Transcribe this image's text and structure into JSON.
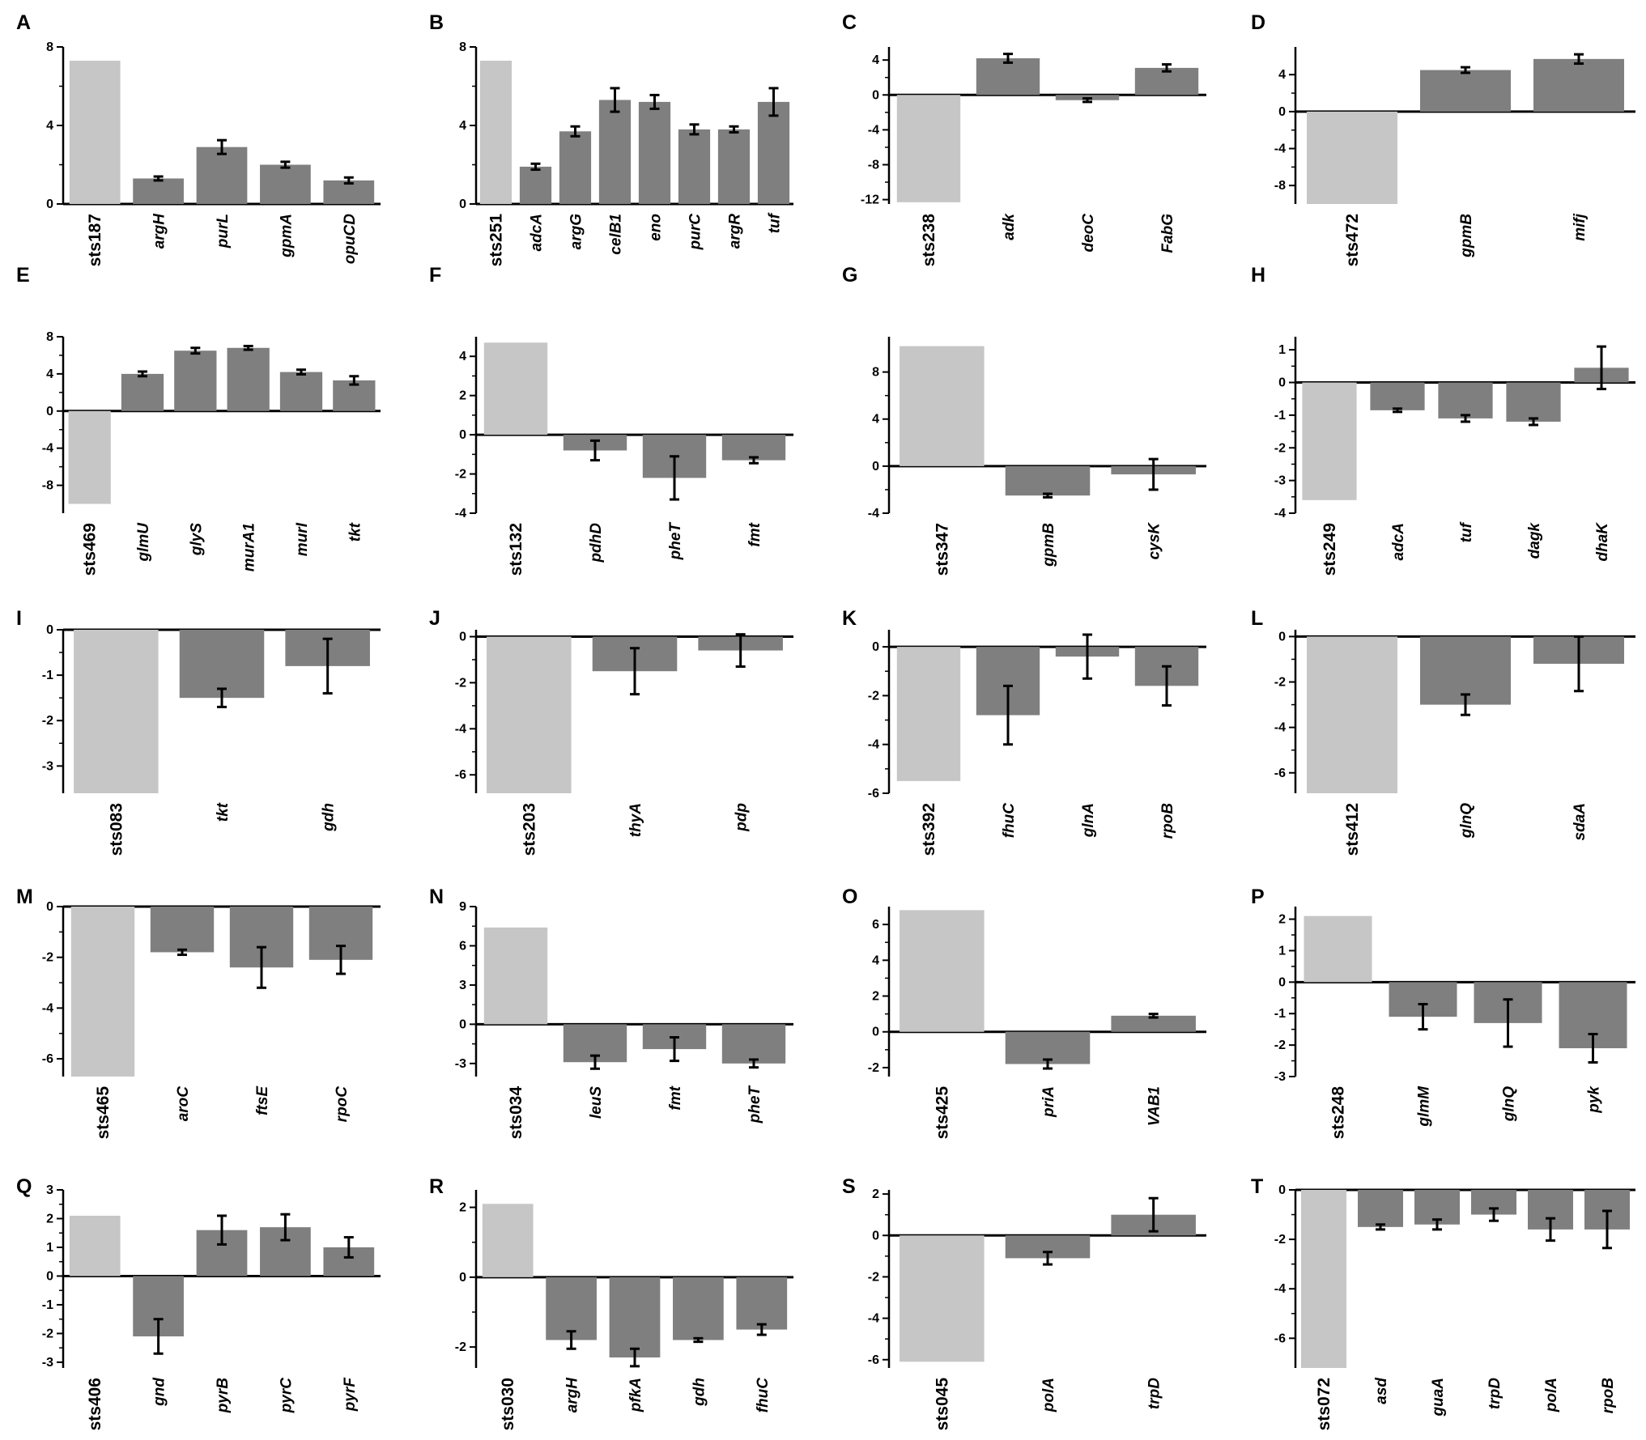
{
  "colors": {
    "first_bar": "#c6c6c6",
    "gene_bar": "#7f7f7f",
    "axis": "#000000",
    "error_bar": "#000000"
  },
  "chart_data": [
    {
      "panel": "A",
      "type": "bar",
      "ylim": [
        0,
        8
      ],
      "yticks": [
        0,
        4,
        8
      ],
      "categories": [
        "sts187",
        "argH",
        "purL",
        "gpmA",
        "opuCD"
      ],
      "values": [
        7.3,
        1.3,
        2.9,
        2.0,
        1.2
      ],
      "errors": [
        0,
        0.1,
        0.35,
        0.15,
        0.15
      ]
    },
    {
      "panel": "B",
      "type": "bar",
      "ylim": [
        0,
        8
      ],
      "yticks": [
        0,
        4,
        8
      ],
      "categories": [
        "sts251",
        "adcA",
        "argG",
        "celB1",
        "eno",
        "purC",
        "argR",
        "tuf"
      ],
      "values": [
        7.3,
        1.9,
        3.7,
        5.3,
        5.2,
        3.8,
        3.8,
        5.2
      ],
      "errors": [
        0,
        0.15,
        0.25,
        0.6,
        0.35,
        0.25,
        0.15,
        0.7
      ]
    },
    {
      "panel": "C",
      "type": "bar",
      "ylim": [
        -12.5,
        5.5
      ],
      "yticks": [
        -12,
        -8,
        -4,
        0,
        4
      ],
      "categories": [
        "sts238",
        "adk",
        "deoC",
        "FabG"
      ],
      "values": [
        -12.3,
        4.2,
        -0.6,
        3.1
      ],
      "errors": [
        0,
        0.5,
        0.2,
        0.4
      ]
    },
    {
      "panel": "D",
      "type": "bar",
      "ylim": [
        -10,
        7
      ],
      "yticks": [
        -8,
        -4,
        0,
        4
      ],
      "categories": [
        "sts472",
        "gpmB",
        "mifj"
      ],
      "values": [
        -10.0,
        4.5,
        5.7
      ],
      "errors": [
        0,
        0.3,
        0.5
      ]
    },
    {
      "panel": "E",
      "type": "bar",
      "ylim": [
        -11,
        8
      ],
      "yticks": [
        -8,
        -4,
        0,
        4,
        8
      ],
      "categories": [
        "sts469",
        "glmU",
        "glyS",
        "murA1",
        "murI",
        "tkt"
      ],
      "values": [
        -10.0,
        4.0,
        6.5,
        6.8,
        4.2,
        3.3
      ],
      "errors": [
        0,
        0.25,
        0.3,
        0.2,
        0.25,
        0.45
      ]
    },
    {
      "panel": "F",
      "type": "bar",
      "ylim": [
        -4,
        5
      ],
      "yticks": [
        -4,
        -2,
        0,
        2,
        4
      ],
      "categories": [
        "sts132",
        "pdhD",
        "pheT",
        "fmt"
      ],
      "values": [
        4.7,
        -0.8,
        -2.2,
        -1.3
      ],
      "errors": [
        0,
        0.5,
        1.1,
        0.15
      ]
    },
    {
      "panel": "G",
      "type": "bar",
      "ylim": [
        -4,
        11
      ],
      "yticks": [
        -4,
        0,
        4,
        8
      ],
      "categories": [
        "sts347",
        "gpmB",
        "cysK"
      ],
      "values": [
        10.2,
        -2.5,
        -0.7
      ],
      "errors": [
        0,
        0.15,
        1.3
      ]
    },
    {
      "panel": "H",
      "type": "bar",
      "ylim": [
        -4,
        1.4
      ],
      "yticks": [
        -4,
        -3,
        -2,
        -1,
        0,
        1
      ],
      "categories": [
        "sts249",
        "adcA",
        "tuf",
        "dagk",
        "dhaK"
      ],
      "values": [
        -3.6,
        -0.85,
        -1.1,
        -1.2,
        0.45
      ],
      "errors": [
        0,
        0.05,
        0.1,
        0.1,
        0.65
      ]
    },
    {
      "panel": "I",
      "type": "bar",
      "ylim": [
        -3.6,
        0
      ],
      "yticks": [
        -3,
        -2,
        -1,
        0
      ],
      "categories": [
        "sts083",
        "tkt",
        "gdh"
      ],
      "values": [
        -3.6,
        -1.5,
        -0.8
      ],
      "errors": [
        0,
        0.2,
        0.6
      ]
    },
    {
      "panel": "J",
      "type": "bar",
      "ylim": [
        -6.8,
        0.3
      ],
      "yticks": [
        -6,
        -4,
        -2,
        0
      ],
      "categories": [
        "sts203",
        "thyA",
        "pdp"
      ],
      "values": [
        -6.8,
        -1.5,
        -0.6
      ],
      "errors": [
        0,
        1.0,
        0.7
      ]
    },
    {
      "panel": "K",
      "type": "bar",
      "ylim": [
        -6,
        0.7
      ],
      "yticks": [
        -6,
        -4,
        -2,
        0
      ],
      "categories": [
        "sts392",
        "fhuC",
        "glnA",
        "rpoB"
      ],
      "values": [
        -5.5,
        -2.8,
        -0.4,
        -1.6
      ],
      "errors": [
        0,
        1.2,
        0.9,
        0.8
      ]
    },
    {
      "panel": "L",
      "type": "bar",
      "ylim": [
        -6.9,
        0.3
      ],
      "yticks": [
        -6,
        -4,
        -2,
        0
      ],
      "categories": [
        "sts412",
        "glnQ",
        "sdaA"
      ],
      "values": [
        -6.9,
        -3.0,
        -1.2
      ],
      "errors": [
        0,
        0.45,
        1.2
      ]
    },
    {
      "panel": "M",
      "type": "bar",
      "ylim": [
        -6.7,
        0
      ],
      "yticks": [
        -6,
        -4,
        -2,
        0
      ],
      "categories": [
        "sts465",
        "aroC",
        "ftsE",
        "rpoC"
      ],
      "values": [
        -6.7,
        -1.8,
        -2.4,
        -2.1
      ],
      "errors": [
        0,
        0.1,
        0.8,
        0.55
      ]
    },
    {
      "panel": "N",
      "type": "bar",
      "ylim": [
        -4,
        9
      ],
      "yticks": [
        -3,
        0,
        3,
        6,
        9
      ],
      "categories": [
        "sts034",
        "leuS",
        "fmt",
        "pheT"
      ],
      "values": [
        7.4,
        -2.9,
        -1.9,
        -3.0
      ],
      "errors": [
        0,
        0.5,
        0.9,
        0.3
      ]
    },
    {
      "panel": "O",
      "type": "bar",
      "ylim": [
        -2.5,
        7
      ],
      "yticks": [
        -2,
        0,
        2,
        4,
        6
      ],
      "categories": [
        "sts425",
        "priA",
        "VAB1"
      ],
      "values": [
        6.8,
        -1.8,
        0.9
      ],
      "errors": [
        0,
        0.25,
        0.1
      ]
    },
    {
      "panel": "P",
      "type": "bar",
      "ylim": [
        -3,
        2.4
      ],
      "yticks": [
        -3,
        -2,
        -1,
        0,
        1,
        2
      ],
      "categories": [
        "sts248",
        "glmM",
        "glnQ",
        "pyk"
      ],
      "values": [
        2.1,
        -1.1,
        -1.3,
        -2.1
      ],
      "errors": [
        0,
        0.4,
        0.75,
        0.45
      ]
    },
    {
      "panel": "Q",
      "type": "bar",
      "ylim": [
        -3.2,
        3
      ],
      "yticks": [
        -3,
        -2,
        -1,
        0,
        1,
        2,
        3
      ],
      "categories": [
        "sts406",
        "gnd",
        "pyrB",
        "pyrC",
        "pyrF"
      ],
      "values": [
        2.1,
        -2.1,
        1.6,
        1.7,
        1.0
      ],
      "errors": [
        0,
        0.6,
        0.5,
        0.45,
        0.35
      ]
    },
    {
      "panel": "R",
      "type": "bar",
      "ylim": [
        -2.6,
        2.5
      ],
      "yticks": [
        -2,
        0,
        2
      ],
      "categories": [
        "sts030",
        "argH",
        "pfkA",
        "gdh",
        "fhuC"
      ],
      "values": [
        2.1,
        -1.8,
        -2.3,
        -1.8,
        -1.5
      ],
      "errors": [
        0,
        0.25,
        0.25,
        0.05,
        0.15
      ]
    },
    {
      "panel": "S",
      "type": "bar",
      "ylim": [
        -6.4,
        2.2
      ],
      "yticks": [
        -6,
        -4,
        -2,
        0,
        2
      ],
      "categories": [
        "sts045",
        "polA",
        "trpD"
      ],
      "values": [
        -6.1,
        -1.1,
        1.0
      ],
      "errors": [
        0,
        0.3,
        0.8
      ]
    },
    {
      "panel": "T",
      "type": "bar",
      "ylim": [
        -7.2,
        0
      ],
      "yticks": [
        -6,
        -4,
        -2,
        0
      ],
      "categories": [
        "sts072",
        "asd",
        "guaA",
        "trpD",
        "polA",
        "rpoB"
      ],
      "values": [
        -7.2,
        -1.5,
        -1.4,
        -1.0,
        -1.6,
        -1.6
      ],
      "errors": [
        0,
        0.1,
        0.2,
        0.25,
        0.45,
        0.75
      ]
    }
  ]
}
